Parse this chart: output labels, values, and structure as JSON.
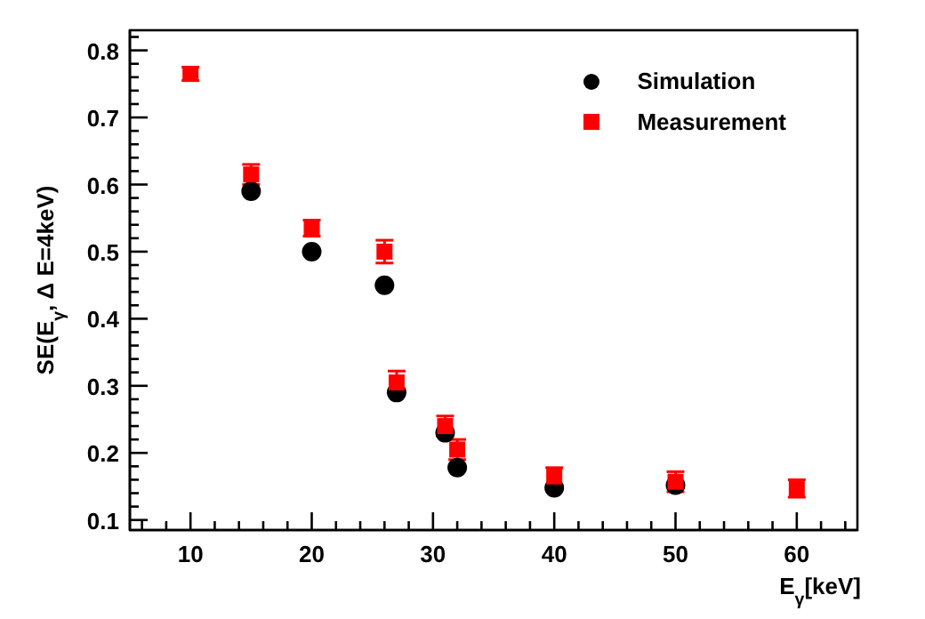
{
  "chart_data": {
    "type": "scatter",
    "xlabel": "E$_{γ}$[keV]",
    "ylabel": "SE(E$_{γ}$, Δ E=4keV)",
    "x": [
      10,
      15,
      20,
      26,
      27,
      31,
      32,
      40,
      50,
      60
    ],
    "series": [
      {
        "name": "Simulation",
        "color": "#000000",
        "marker": "circle",
        "values": [
          null,
          0.59,
          0.5,
          0.45,
          0.29,
          0.23,
          0.178,
          0.148,
          0.152,
          null
        ]
      },
      {
        "name": "Measurement",
        "color": "#ff0000",
        "marker": "square",
        "values": [
          0.765,
          0.615,
          0.535,
          0.5,
          0.305,
          0.24,
          0.205,
          0.165,
          0.157,
          0.147
        ],
        "errors": [
          0.01,
          0.015,
          0.012,
          0.017,
          0.017,
          0.015,
          0.015,
          0.013,
          0.015,
          0.013
        ]
      }
    ],
    "xlim": [
      5,
      65
    ],
    "xticks": [
      {
        "value": 6,
        "label": null
      },
      {
        "value": 8,
        "label": null
      },
      10,
      {
        "value": 12,
        "label": null
      },
      {
        "value": 14,
        "label": null
      },
      {
        "value": 16,
        "label": null
      },
      {
        "value": 18,
        "label": null
      },
      20,
      {
        "value": 22,
        "label": null
      },
      {
        "value": 24,
        "label": null
      },
      {
        "value": 26,
        "label": null
      },
      {
        "value": 28,
        "label": null
      },
      30,
      {
        "value": 32,
        "label": null
      },
      {
        "value": 34,
        "label": null
      },
      {
        "value": 36,
        "label": null
      },
      {
        "value": 38,
        "label": null
      },
      40,
      {
        "value": 42,
        "label": null
      },
      {
        "value": 44,
        "label": null
      },
      {
        "value": 46,
        "label": null
      },
      {
        "value": 48,
        "label": null
      },
      50,
      {
        "value": 52,
        "label": null
      },
      {
        "value": 54,
        "label": null
      },
      {
        "value": 56,
        "label": null
      },
      {
        "value": 58,
        "label": null
      },
      60,
      {
        "value": 62,
        "label": null
      },
      {
        "value": 64,
        "label": null
      }
    ],
    "ylim": [
      0.085,
      0.83
    ],
    "yticks": [
      0.1,
      {
        "value": 0.12,
        "label": null
      },
      {
        "value": 0.14,
        "label": null
      },
      {
        "value": 0.16,
        "label": null
      },
      {
        "value": 0.18,
        "label": null
      },
      0.2,
      {
        "value": 0.22,
        "label": null
      },
      {
        "value": 0.24,
        "label": null
      },
      {
        "value": 0.26,
        "label": null
      },
      {
        "value": 0.28,
        "label": null
      },
      0.3,
      {
        "value": 0.32,
        "label": null
      },
      {
        "value": 0.34,
        "label": null
      },
      {
        "value": 0.36,
        "label": null
      },
      {
        "value": 0.38,
        "label": null
      },
      0.4,
      {
        "value": 0.42,
        "label": null
      },
      {
        "value": 0.44,
        "label": null
      },
      {
        "value": 0.46,
        "label": null
      },
      {
        "value": 0.48,
        "label": null
      },
      0.5,
      {
        "value": 0.52,
        "label": null
      },
      {
        "value": 0.54,
        "label": null
      },
      {
        "value": 0.56,
        "label": null
      },
      {
        "value": 0.58,
        "label": null
      },
      0.6,
      {
        "value": 0.62,
        "label": null
      },
      {
        "value": 0.64,
        "label": null
      },
      {
        "value": 0.66,
        "label": null
      },
      {
        "value": 0.68,
        "label": null
      },
      0.7,
      {
        "value": 0.72,
        "label": null
      },
      {
        "value": 0.74,
        "label": null
      },
      {
        "value": 0.76,
        "label": null
      },
      {
        "value": 0.78,
        "label": null
      },
      0.8,
      {
        "value": 0.82,
        "label": null
      }
    ],
    "grid": false,
    "legend": "top right"
  }
}
